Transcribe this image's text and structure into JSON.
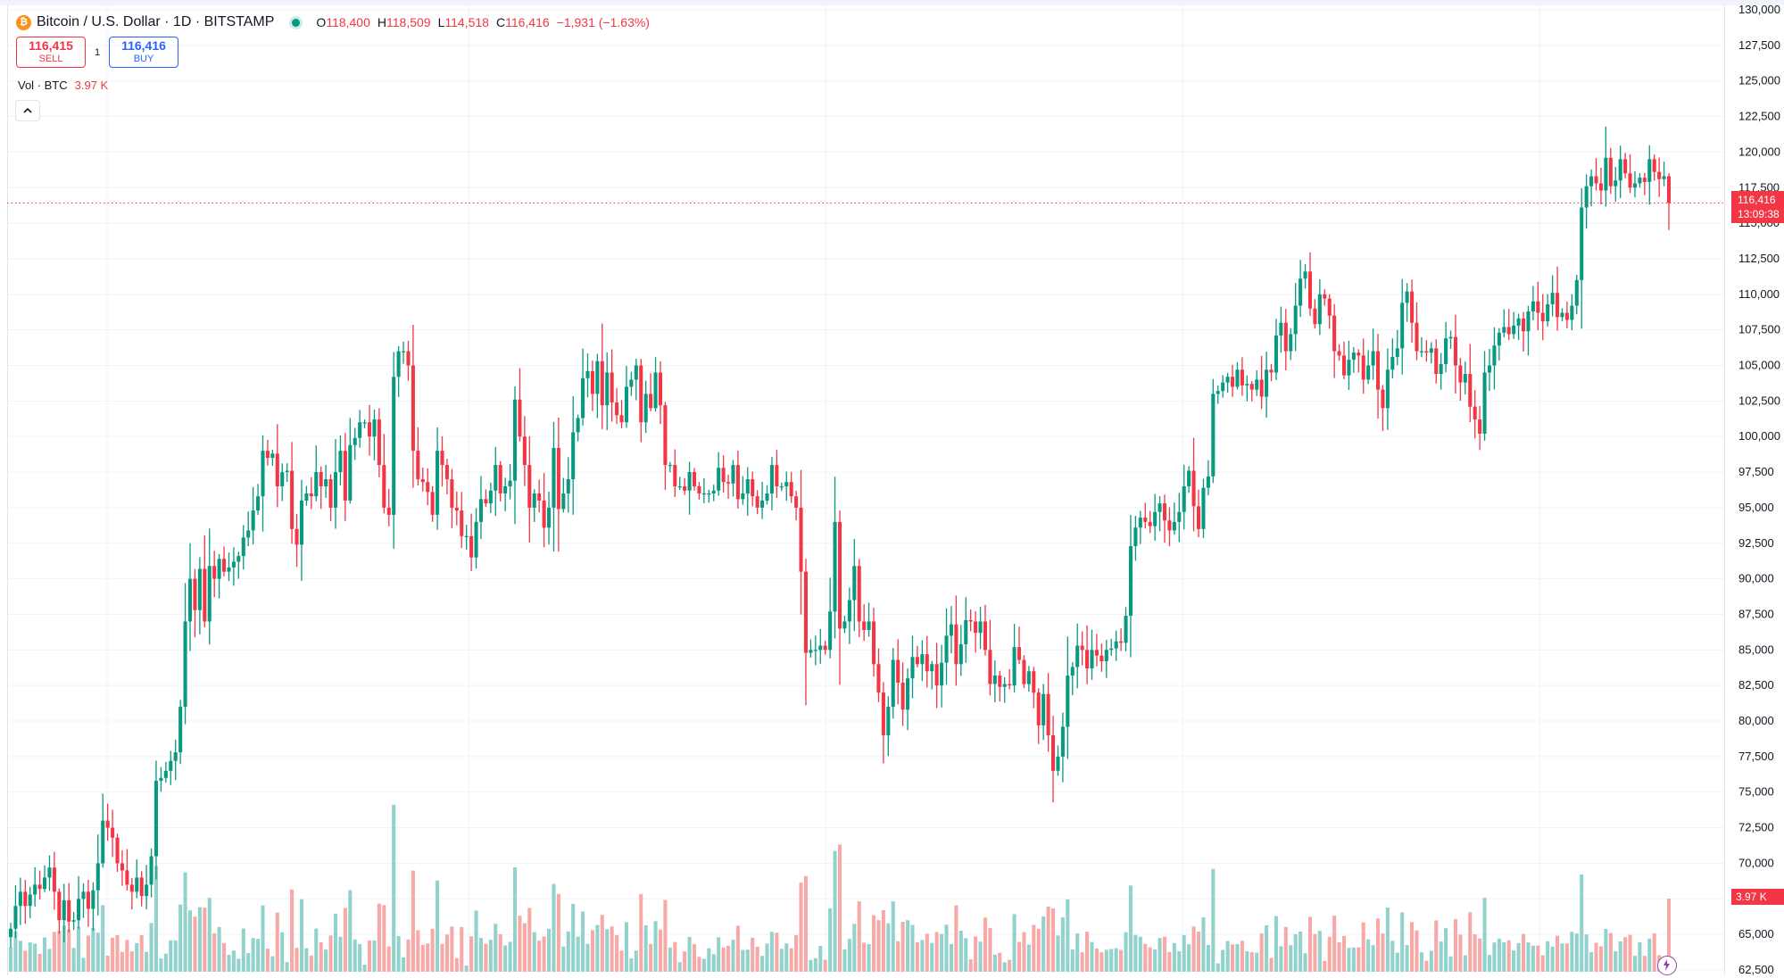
{
  "header": {
    "logo_glyph": "₿",
    "symbol_title": "Bitcoin / U.S. Dollar · 1D · BITSTAMP",
    "ohlc": {
      "open_label": "O",
      "open": "118,400",
      "high_label": "H",
      "high": "118,509",
      "low_label": "L",
      "low": "114,518",
      "close_label": "C",
      "close": "116,416",
      "change": "−1,931 (−1.63%)"
    }
  },
  "trade": {
    "sell_price": "116,415",
    "sell_label": "SELL",
    "spread": "1",
    "buy_price": "116,416",
    "buy_label": "BUY"
  },
  "volume_legend": {
    "label": "Vol · BTC",
    "value": "3.97 K"
  },
  "price_axis": {
    "labels": [
      "130,000",
      "127,500",
      "125,000",
      "122,500",
      "120,000",
      "117,500",
      "115,000",
      "112,500",
      "110,000",
      "107,500",
      "105,000",
      "102,500",
      "100,000",
      "97,500",
      "95,000",
      "92,500",
      "90,000",
      "87,500",
      "85,000",
      "82,500",
      "80,000",
      "77,500",
      "75,000",
      "72,500",
      "70,000",
      "67,500",
      "65,000",
      "62,500"
    ],
    "current_price_label": "116,416",
    "countdown_label": "13:09:38",
    "volume_label": "3.97 K"
  },
  "colors": {
    "up": "#089981",
    "down": "#f23645",
    "up_volume": "#92d2cc",
    "down_volume": "#f7a9a7",
    "grid": "#f0f3fa"
  },
  "chart_data": {
    "type": "candlestick",
    "title": "Bitcoin / U.S. Dollar · 1D · BITSTAMP",
    "y_range": [
      61500,
      131000
    ],
    "current_price": 116416,
    "closes": [
      65400,
      67000,
      68000,
      67000,
      67800,
      68500,
      68200,
      69000,
      69700,
      68000,
      66000,
      67400,
      65900,
      66000,
      67500,
      68000,
      66800,
      68100,
      70000,
      73000,
      72500,
      71800,
      70000,
      69500,
      68500,
      68000,
      69000,
      67700,
      68500,
      70500,
      75800,
      76000,
      76500,
      77200,
      77800,
      81000,
      87000,
      90000,
      87800,
      90700,
      87000,
      90900,
      90000,
      91400,
      90500,
      90800,
      91200,
      91600,
      92900,
      93400,
      94800,
      95800,
      99000,
      98500,
      98800,
      96500,
      97500,
      97600,
      93500,
      92400,
      95500,
      96000,
      95800,
      97500,
      96500,
      97000,
      95000,
      97500,
      99000,
      95500,
      99400,
      99900,
      101000,
      101000,
      100000,
      101200,
      98000,
      95000,
      94500,
      104200,
      106000,
      106000,
      105000,
      99000,
      97000,
      96800,
      96100,
      94500,
      99000,
      98000,
      97000,
      95000,
      94800,
      93000,
      93000,
      91500,
      94000,
      95600,
      95300,
      96200,
      98000,
      96000,
      96500,
      96900,
      102600,
      100000,
      98000,
      95000,
      96000,
      95500,
      93600,
      95000,
      99200,
      94900,
      96000,
      97000,
      100300,
      101300,
      104100,
      104600,
      103000,
      105300,
      102200,
      104500,
      102400,
      101500,
      101000,
      103500,
      104000,
      105000,
      101000,
      103000,
      102000,
      104500,
      102200,
      98000,
      98000,
      96500,
      96500,
      96200,
      97500,
      96500,
      96000,
      96000,
      96000,
      96200,
      97800,
      96800,
      96700,
      98000,
      95600,
      96000,
      97000,
      95800,
      95000,
      95500,
      96000,
      98000,
      96500,
      96500,
      96800,
      95800,
      95000,
      90500,
      84800,
      85000,
      85000,
      85300,
      85000,
      87700,
      94000,
      86500,
      87000,
      88500,
      90900,
      87000,
      86400,
      87000,
      84000,
      82000,
      79000,
      81000,
      84300,
      82700,
      80800,
      83000,
      84500,
      84000,
      84700,
      83500,
      84000,
      82500,
      84100,
      86000,
      86800,
      84000,
      85400,
      87100,
      87000,
      86200,
      87000,
      85000,
      82600,
      83200,
      82400,
      82600,
      82500,
      85200,
      84300,
      82600,
      83500,
      82000,
      79700,
      81900,
      79000,
      76500,
      77500,
      79600,
      83200,
      83800,
      85300,
      85000,
      83700,
      85000,
      84600,
      84200,
      85000,
      85100,
      85600,
      85500,
      87400,
      92300,
      93600,
      94300,
      94000,
      93700,
      94700,
      95300,
      94100,
      93400,
      94000,
      94700,
      96500,
      97600,
      95100,
      93500,
      96400,
      97200,
      103000,
      103200,
      103800,
      104200,
      103500,
      104700,
      103600,
      103700,
      103300,
      104000,
      102800,
      104700,
      104500,
      107100,
      108000,
      106000,
      107200,
      109200,
      111100,
      111600,
      109000,
      107900,
      110000,
      109700,
      108500,
      106000,
      105700,
      104300,
      105400,
      105900,
      105700,
      104000,
      105000,
      106000,
      103300,
      102000,
      104700,
      105600,
      106200,
      109400,
      110200,
      108000,
      106000,
      106000,
      105900,
      106200,
      104400,
      105100,
      106900,
      107000,
      105000,
      103800,
      104400,
      102100,
      101200,
      100200,
      104500,
      105000,
      106400,
      107300,
      107700,
      107200,
      107800,
      108300,
      107400,
      108800,
      109500,
      108700,
      108100,
      109300,
      110100,
      108400,
      108700,
      108200,
      109200,
      111000,
      116100,
      117600,
      118300,
      117800,
      117300,
      119600,
      117600,
      118000,
      119500,
      118500,
      117500,
      117800,
      118200,
      117900,
      119500,
      118600,
      118100,
      118300,
      116416
    ],
    "volume_note": "Vol · BTC, last 3.97 K"
  }
}
